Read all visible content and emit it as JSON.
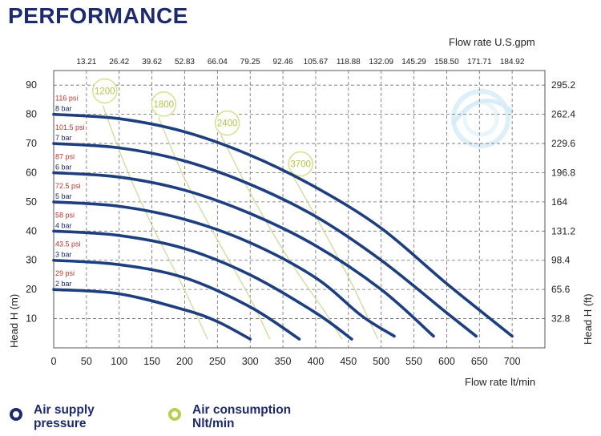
{
  "page": {
    "title": "PERFORMANCE"
  },
  "chart_data": {
    "type": "line",
    "title": "PERFORMANCE",
    "xlabel": "Flow rate  lt/min",
    "ylabel": "Head H (m)",
    "y2label": "Head H (ft)",
    "x2label": "Flow rate U.S.gpm",
    "xlim": [
      0,
      750
    ],
    "ylim": [
      0,
      95
    ],
    "x_ticks": [
      0,
      50,
      100,
      150,
      200,
      250,
      300,
      350,
      400,
      450,
      500,
      550,
      600,
      650,
      700
    ],
    "y_ticks": [
      10,
      20,
      30,
      40,
      50,
      60,
      70,
      80,
      90
    ],
    "top_ticks": [
      "13.21",
      "26.42",
      "39.62",
      "52.83",
      "66.04",
      "79.25",
      "92.46",
      "105.67",
      "118.88",
      "132.09",
      "145.29",
      "158.50",
      "171.71",
      "184.92"
    ],
    "right_ticks": [
      "295.2",
      "262.4",
      "229.6",
      "196.8",
      "164",
      "131.2",
      "98.4",
      "65.6",
      "32.8"
    ],
    "grid": true,
    "pressure_curves": [
      {
        "bar_label": "8 bar",
        "psi_label": "116 psi",
        "points": [
          [
            0,
            80
          ],
          [
            100,
            78.5
          ],
          [
            200,
            74
          ],
          [
            300,
            66
          ],
          [
            400,
            55
          ],
          [
            500,
            41
          ],
          [
            600,
            22
          ],
          [
            700,
            4
          ]
        ]
      },
      {
        "bar_label": "7 bar",
        "psi_label": "101.5 psi",
        "points": [
          [
            0,
            70
          ],
          [
            100,
            68.5
          ],
          [
            200,
            64
          ],
          [
            300,
            56
          ],
          [
            400,
            45
          ],
          [
            500,
            30
          ],
          [
            600,
            12
          ],
          [
            645,
            4
          ]
        ]
      },
      {
        "bar_label": "6 bar",
        "psi_label": "87 psi",
        "points": [
          [
            0,
            60
          ],
          [
            100,
            58.5
          ],
          [
            200,
            54
          ],
          [
            300,
            46
          ],
          [
            400,
            35
          ],
          [
            500,
            20
          ],
          [
            580,
            4
          ]
        ]
      },
      {
        "bar_label": "5 bar",
        "psi_label": "72.5 psi",
        "points": [
          [
            0,
            50
          ],
          [
            100,
            48.5
          ],
          [
            200,
            44
          ],
          [
            300,
            36
          ],
          [
            400,
            24
          ],
          [
            470,
            11
          ],
          [
            520,
            4
          ]
        ]
      },
      {
        "bar_label": "4 bar",
        "psi_label": "58 psi",
        "points": [
          [
            0,
            40
          ],
          [
            100,
            38.5
          ],
          [
            200,
            34
          ],
          [
            300,
            25
          ],
          [
            400,
            12
          ],
          [
            455,
            3
          ]
        ]
      },
      {
        "bar_label": "3 bar",
        "psi_label": "43.5 psi",
        "points": [
          [
            0,
            30
          ],
          [
            100,
            28.5
          ],
          [
            200,
            24
          ],
          [
            300,
            14
          ],
          [
            375,
            3
          ]
        ]
      },
      {
        "bar_label": "2 bar",
        "psi_label": "29 psi",
        "points": [
          [
            0,
            20
          ],
          [
            100,
            18.5
          ],
          [
            200,
            13
          ],
          [
            250,
            9
          ],
          [
            300,
            3
          ]
        ]
      }
    ],
    "air_curves": [
      {
        "label": "1200",
        "label_at": [
          78,
          88
        ],
        "points": [
          [
            75,
            83
          ],
          [
            110,
            62
          ],
          [
            150,
            42
          ],
          [
            195,
            22
          ],
          [
            235,
            3
          ]
        ]
      },
      {
        "label": "1800",
        "label_at": [
          168,
          83.5
        ],
        "points": [
          [
            160,
            79
          ],
          [
            200,
            58
          ],
          [
            250,
            37
          ],
          [
            300,
            17
          ],
          [
            330,
            3
          ]
        ]
      },
      {
        "label": "2400",
        "label_at": [
          265,
          77
        ],
        "points": [
          [
            255,
            73
          ],
          [
            305,
            51
          ],
          [
            360,
            30
          ],
          [
            415,
            12
          ],
          [
            440,
            3
          ]
        ]
      },
      {
        "label": "3700",
        "label_at": [
          377,
          63
        ],
        "points": [
          [
            365,
            59
          ],
          [
            410,
            41
          ],
          [
            455,
            22
          ],
          [
            495,
            3
          ]
        ]
      }
    ]
  },
  "legend": {
    "supply_label": "Air supply\npressure",
    "air_label": "Air consumption\nNlt/min",
    "supply_color": "#1d2a6e",
    "air_color": "#b9cf4d"
  },
  "colors": {
    "curve": "#1d3f80",
    "air_curve": "#d3dca0",
    "psi_text": "#c0342c",
    "bar_text": "#1d2a6e",
    "grid": "#6b6b6b"
  }
}
